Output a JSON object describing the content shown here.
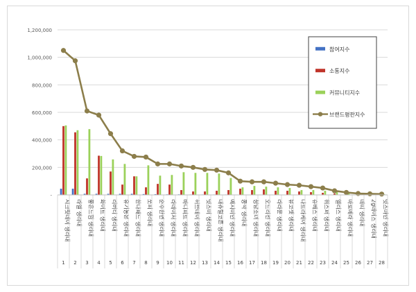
{
  "chart_data": {
    "type": "bar+line",
    "categories": [
      "시크릿데이 생리대",
      "라엘 생리대",
      "좋은느낌 생리대",
      "화이트 생리대",
      "리버티 생리대",
      "유기농본 생리대",
      "한나패드 생리대",
      "쏘피 생리대",
      "순수한면 생리대",
      "라네이처 생리대",
      "바디피트 생리대",
      "허브데이 생리대",
      "잇츠미 생리대",
      "내츄럴코튼 생리대",
      "예지미인 생리대",
      "콩깍 생리대",
      "청담소녀 생리대",
      "오드리선 생리대",
      "라라문 생리대",
      "뷰코셋 생리대",
      "나트라케어 생리대",
      "슈베스 생리대",
      "위스퍼 생리대",
      "앨리스 생리대",
      "마로메라 생리대",
      "네띠 생리대",
      "2g데이즈 생리대",
      "잇츠마인 생리대"
    ],
    "x_numbers": [
      "1",
      "2",
      "3",
      "4",
      "5",
      "6",
      "7",
      "8",
      "9",
      "10",
      "11",
      "12",
      "13",
      "14",
      "15",
      "16",
      "17",
      "18",
      "19",
      "20",
      "21",
      "22",
      "23",
      "24",
      "25",
      "26",
      "27",
      "28"
    ],
    "series": [
      {
        "name": "참여지수",
        "kind": "bar",
        "color": "#4472c4",
        "values": [
          45000,
          45000,
          8000,
          8000,
          8000,
          8000,
          8000,
          6000,
          5000,
          4000,
          4000,
          3000,
          3000,
          3000,
          3000,
          2000,
          2000,
          2000,
          2000,
          2000,
          2000,
          2000,
          1000,
          1000,
          1000,
          1000,
          1000,
          1000
        ]
      },
      {
        "name": "소통지수",
        "kind": "bar",
        "color": "#c0342a",
        "values": [
          500000,
          455000,
          120000,
          285000,
          170000,
          75000,
          135000,
          55000,
          80000,
          75000,
          35000,
          25000,
          25000,
          30000,
          35000,
          45000,
          35000,
          40000,
          30000,
          30000,
          25000,
          20000,
          15000,
          10000,
          5000,
          3000,
          2000,
          2000
        ]
      },
      {
        "name": "커뮤니티지수",
        "kind": "bar",
        "color": "#9bd15a",
        "values": [
          505000,
          470000,
          478000,
          283000,
          258000,
          225000,
          135000,
          215000,
          140000,
          145000,
          165000,
          160000,
          160000,
          155000,
          123000,
          55000,
          65000,
          60000,
          55000,
          50000,
          35000,
          35000,
          30000,
          20000,
          15000,
          10000,
          8000,
          5000
        ]
      },
      {
        "name": "브랜드평판지수",
        "kind": "line",
        "color": "#8c7e4b",
        "values": [
          1050000,
          975000,
          610000,
          580000,
          445000,
          320000,
          280000,
          275000,
          225000,
          225000,
          210000,
          200000,
          185000,
          180000,
          160000,
          100000,
          95000,
          95000,
          85000,
          75000,
          70000,
          60000,
          50000,
          30000,
          18000,
          10000,
          8000,
          6000
        ]
      }
    ],
    "y_ticks": [
      "-",
      "200,000",
      "400,000",
      "600,000",
      "800,000",
      "1,000,000",
      "1,200,000"
    ],
    "ylim": [
      0,
      1200000
    ],
    "grid": true,
    "legend_position": "right"
  }
}
